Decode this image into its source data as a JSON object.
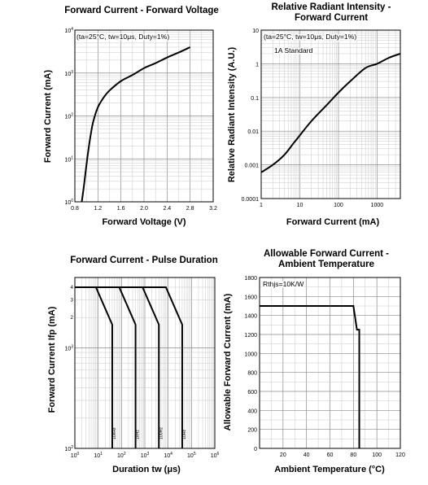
{
  "chart_data": [
    {
      "type": "line",
      "title": "Forward Current - Forward Voltage",
      "xlabel": "Forward Voltage (V)",
      "ylabel": "Forward Current (mA)",
      "xlim": [
        0.8,
        3.2
      ],
      "ylim": [
        1,
        10000
      ],
      "y_scale": "log",
      "x_ticks": [
        "0.8",
        "1.2",
        "1.6",
        "2.0",
        "2.4",
        "2.8",
        "3.2"
      ],
      "y_ticks": [
        {
          "base": "10",
          "exp": "0"
        },
        {
          "base": "10",
          "exp": "1"
        },
        {
          "base": "10",
          "exp": "2"
        },
        {
          "base": "10",
          "exp": "3"
        },
        {
          "base": "10",
          "exp": "4"
        }
      ],
      "annotations": [
        "(ta=25°C, tw=10μs, Duty=1%)"
      ],
      "grid": true,
      "series": [
        {
          "x": [
            0.92,
            0.96,
            1.0,
            1.04,
            1.08,
            1.12,
            1.2,
            1.3,
            1.4,
            1.6,
            1.8,
            2.0,
            2.2,
            2.4,
            2.6,
            2.8
          ],
          "y": [
            1,
            2.5,
            7,
            18,
            40,
            75,
            160,
            270,
            390,
            650,
            900,
            1300,
            1700,
            2300,
            3000,
            4000
          ]
        }
      ]
    },
    {
      "type": "line",
      "title": "Relative Radiant Intensity -",
      "title_line2": "Forward Current",
      "xlabel": "Forward Current (mA)",
      "ylabel": "Relative Radiant Intensity (A.U.)",
      "xlim": [
        1,
        4000
      ],
      "ylim": [
        0.0001,
        10
      ],
      "x_scale": "log",
      "y_scale": "log",
      "x_ticks": [
        "1",
        "10",
        "100",
        "1000"
      ],
      "y_ticks": [
        "0.0001",
        "0.001",
        "0.01",
        "0.1",
        "1",
        "10"
      ],
      "annotations": [
        "(ta=25°C, tw=10μs, Duty=1%)",
        "1A Standard"
      ],
      "grid": true,
      "series": [
        {
          "x": [
            1,
            2,
            4,
            7,
            10,
            20,
            50,
            100,
            200,
            500,
            1000,
            2000,
            4000
          ],
          "y": [
            0.0006,
            0.001,
            0.002,
            0.0045,
            0.0075,
            0.02,
            0.06,
            0.14,
            0.3,
            0.75,
            1.0,
            1.5,
            2.0
          ]
        }
      ]
    },
    {
      "type": "line",
      "title": "Forward Current - Pulse Duration",
      "xlabel": "Duration tw (μs)",
      "ylabel": "Forward Current Ifp (mA)",
      "xlim": [
        1,
        1000000
      ],
      "ylim": [
        100,
        5000
      ],
      "x_scale": "log",
      "y_scale": "log",
      "x_ticks": [
        {
          "base": "10",
          "exp": "0"
        },
        {
          "base": "10",
          "exp": "1"
        },
        {
          "base": "10",
          "exp": "2"
        },
        {
          "base": "10",
          "exp": "3"
        },
        {
          "base": "10",
          "exp": "4"
        },
        {
          "base": "10",
          "exp": "5"
        },
        {
          "base": "10",
          "exp": "6"
        }
      ],
      "y_major_ticks": [
        {
          "base": "10",
          "exp": "2"
        },
        {
          "base": "10",
          "exp": "3"
        }
      ],
      "y_minor_labels": [
        "2",
        "3",
        "4"
      ],
      "grid": true,
      "series": [
        {
          "name": "10kHz",
          "x": [
            1,
            8,
            40,
            40,
            40
          ],
          "y": [
            4000,
            4000,
            1700,
            1700,
            100
          ]
        },
        {
          "name": "1kHz",
          "x": [
            1,
            80,
            400,
            400
          ],
          "y": [
            4000,
            4000,
            1700,
            100
          ]
        },
        {
          "name": "100Hz",
          "x": [
            1,
            800,
            4000,
            4000
          ],
          "y": [
            4000,
            4000,
            1700,
            100
          ]
        },
        {
          "name": "10Hz",
          "x": [
            1,
            8000,
            40000,
            40000
          ],
          "y": [
            4000,
            4000,
            1700,
            100
          ]
        }
      ]
    },
    {
      "type": "line",
      "title": "Allowable Forward Current -",
      "title_line2": "Ambient Temperature",
      "xlabel": "Ambient Temperature (°C)",
      "ylabel": "Allowable Forward Current (mA)",
      "xlim": [
        0,
        120
      ],
      "ylim": [
        0,
        1800
      ],
      "x_ticks": [
        "0",
        "20",
        "40",
        "60",
        "80",
        "100",
        "120"
      ],
      "y_ticks": [
        "0",
        "200",
        "400",
        "600",
        "800",
        "1000",
        "1200",
        "1400",
        "1600",
        "1800"
      ],
      "annotations": [
        "Rthjs=10K/W"
      ],
      "grid": true,
      "series": [
        {
          "x": [
            0,
            80,
            83,
            85,
            85
          ],
          "y": [
            1500,
            1500,
            1250,
            1250,
            0
          ]
        }
      ]
    }
  ]
}
